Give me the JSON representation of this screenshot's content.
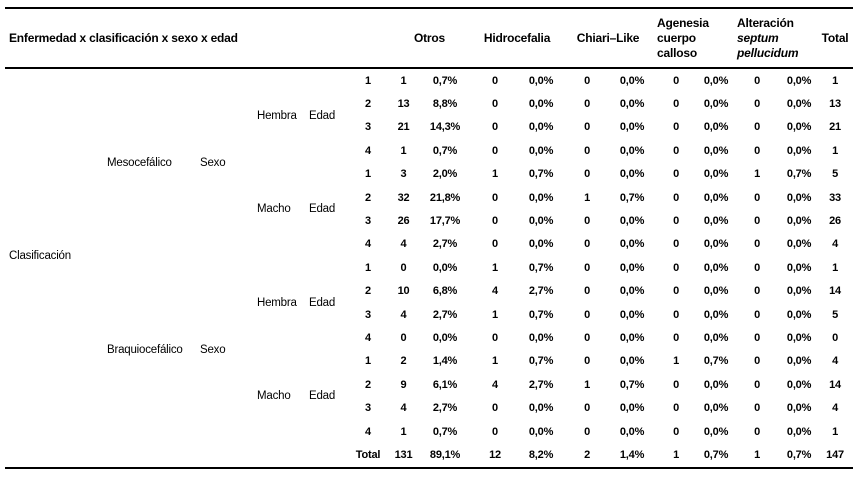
{
  "header": {
    "stub": "Enfermedad x clasificación x sexo x edad",
    "otros": "Otros",
    "hidrocefalia": "Hidrocefalia",
    "chiari_like": "Chiari–Like",
    "agenesia_lines": [
      "Agenesia",
      "cuerpo",
      "calloso"
    ],
    "alteracion_lines": [
      "Alteración",
      "septum",
      "pellucidum"
    ],
    "total": "Total"
  },
  "body": {
    "classification_label": "Clasificación",
    "sexo_label": "Sexo",
    "edad_label": "Edad",
    "total_label": "Total",
    "groups": [
      {
        "classification": "Mesocefálico",
        "sexes": [
          {
            "sex": "Hembra",
            "rows": [
              {
                "age": "1",
                "values": [
                  "1",
                  "0,7%",
                  "0",
                  "0,0%",
                  "0",
                  "0,0%",
                  "0",
                  "0,0%",
                  "0",
                  "0,0%",
                  "1"
                ]
              },
              {
                "age": "2",
                "values": [
                  "13",
                  "8,8%",
                  "0",
                  "0,0%",
                  "0",
                  "0,0%",
                  "0",
                  "0,0%",
                  "0",
                  "0,0%",
                  "13"
                ]
              },
              {
                "age": "3",
                "values": [
                  "21",
                  "14,3%",
                  "0",
                  "0,0%",
                  "0",
                  "0,0%",
                  "0",
                  "0,0%",
                  "0",
                  "0,0%",
                  "21"
                ]
              },
              {
                "age": "4",
                "values": [
                  "1",
                  "0,7%",
                  "0",
                  "0,0%",
                  "0",
                  "0,0%",
                  "0",
                  "0,0%",
                  "0",
                  "0,0%",
                  "1"
                ]
              }
            ]
          },
          {
            "sex": "Macho",
            "rows": [
              {
                "age": "1",
                "values": [
                  "3",
                  "2,0%",
                  "1",
                  "0,7%",
                  "0",
                  "0,0%",
                  "0",
                  "0,0%",
                  "1",
                  "0,7%",
                  "5"
                ]
              },
              {
                "age": "2",
                "values": [
                  "32",
                  "21,8%",
                  "0",
                  "0,0%",
                  "1",
                  "0,7%",
                  "0",
                  "0,0%",
                  "0",
                  "0,0%",
                  "33"
                ]
              },
              {
                "age": "3",
                "values": [
                  "26",
                  "17,7%",
                  "0",
                  "0,0%",
                  "0",
                  "0,0%",
                  "0",
                  "0,0%",
                  "0",
                  "0,0%",
                  "26"
                ]
              },
              {
                "age": "4",
                "values": [
                  "4",
                  "2,7%",
                  "0",
                  "0,0%",
                  "0",
                  "0,0%",
                  "0",
                  "0,0%",
                  "0",
                  "0,0%",
                  "4"
                ]
              }
            ]
          }
        ]
      },
      {
        "classification": "Braquiocefálico",
        "sexes": [
          {
            "sex": "Hembra",
            "rows": [
              {
                "age": "1",
                "values": [
                  "0",
                  "0,0%",
                  "1",
                  "0,7%",
                  "0",
                  "0,0%",
                  "0",
                  "0,0%",
                  "0",
                  "0,0%",
                  "1"
                ]
              },
              {
                "age": "2",
                "values": [
                  "10",
                  "6,8%",
                  "4",
                  "2,7%",
                  "0",
                  "0,0%",
                  "0",
                  "0,0%",
                  "0",
                  "0,0%",
                  "14"
                ]
              },
              {
                "age": "3",
                "values": [
                  "4",
                  "2,7%",
                  "1",
                  "0,7%",
                  "0",
                  "0,0%",
                  "0",
                  "0,0%",
                  "0",
                  "0,0%",
                  "5"
                ]
              },
              {
                "age": "4",
                "values": [
                  "0",
                  "0,0%",
                  "0",
                  "0,0%",
                  "0",
                  "0,0%",
                  "0",
                  "0,0%",
                  "0",
                  "0,0%",
                  "0"
                ]
              }
            ]
          },
          {
            "sex": "Macho",
            "rows": [
              {
                "age": "1",
                "values": [
                  "2",
                  "1,4%",
                  "1",
                  "0,7%",
                  "0",
                  "0,0%",
                  "1",
                  "0,7%",
                  "0",
                  "0,0%",
                  "4"
                ]
              },
              {
                "age": "2",
                "values": [
                  "9",
                  "6,1%",
                  "4",
                  "2,7%",
                  "1",
                  "0,7%",
                  "0",
                  "0,0%",
                  "0",
                  "0,0%",
                  "14"
                ]
              },
              {
                "age": "3",
                "values": [
                  "4",
                  "2,7%",
                  "0",
                  "0,0%",
                  "0",
                  "0,0%",
                  "0",
                  "0,0%",
                  "0",
                  "0,0%",
                  "4"
                ]
              },
              {
                "age": "4",
                "values": [
                  "1",
                  "0,7%",
                  "0",
                  "0,0%",
                  "0",
                  "0,0%",
                  "0",
                  "0,0%",
                  "0",
                  "0,0%",
                  "1"
                ]
              }
            ]
          }
        ]
      }
    ],
    "total_row": [
      "131",
      "89,1%",
      "12",
      "8,2%",
      "2",
      "1,4%",
      "1",
      "0,7%",
      "1",
      "0,7%",
      "147"
    ]
  },
  "colors": {
    "text": "#000000",
    "rule": "#000000",
    "background": "#ffffff"
  }
}
